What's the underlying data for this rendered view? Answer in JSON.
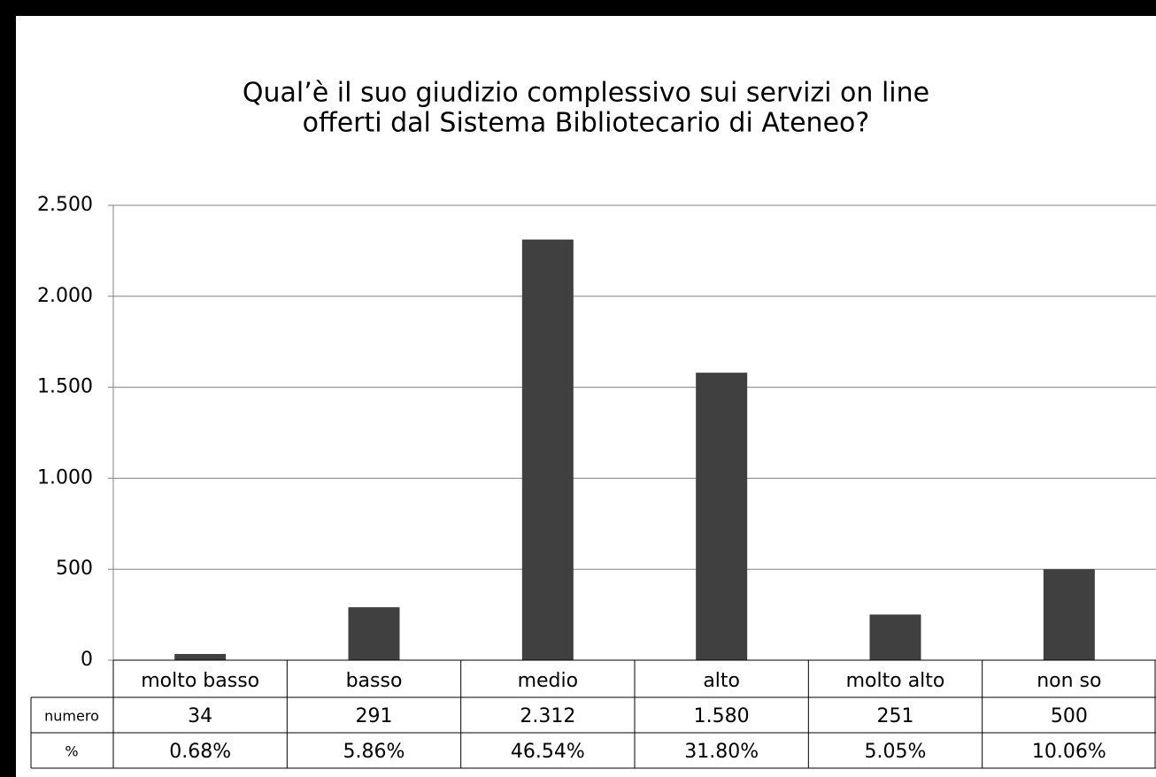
{
  "chart_data": {
    "type": "bar",
    "title": [
      "Qual’è il suo giudizio complessivo sui servizi on line",
      "offerti dal Sistema Bibliotecario di Ateneo?"
    ],
    "categories": [
      "molto basso",
      "basso",
      "medio",
      "alto",
      "molto alto",
      "non so"
    ],
    "series": [
      {
        "name": "numero",
        "color": "#404040",
        "values": [
          34,
          291,
          2312,
          1580,
          251,
          500
        ],
        "value_labels": [
          "34",
          "291",
          "2.312",
          "1.580",
          "251",
          "500"
        ]
      }
    ],
    "percent": {
      "name": "%",
      "values": [
        0.68,
        5.86,
        46.54,
        31.8,
        5.05,
        10.06
      ],
      "value_labels": [
        "0.68%",
        "5.86%",
        "46.54%",
        "31.80%",
        "5.05%",
        "10.06%"
      ]
    },
    "ylim": [
      0,
      2500
    ],
    "yticks": [
      0,
      500,
      {
        "value": 1000,
        "label": "1.000"
      },
      {
        "value": 1500,
        "label": "1.500"
      },
      {
        "value": 2000,
        "label": "2.000"
      },
      {
        "value": 2500,
        "label": "2.500"
      }
    ],
    "grid": true
  }
}
